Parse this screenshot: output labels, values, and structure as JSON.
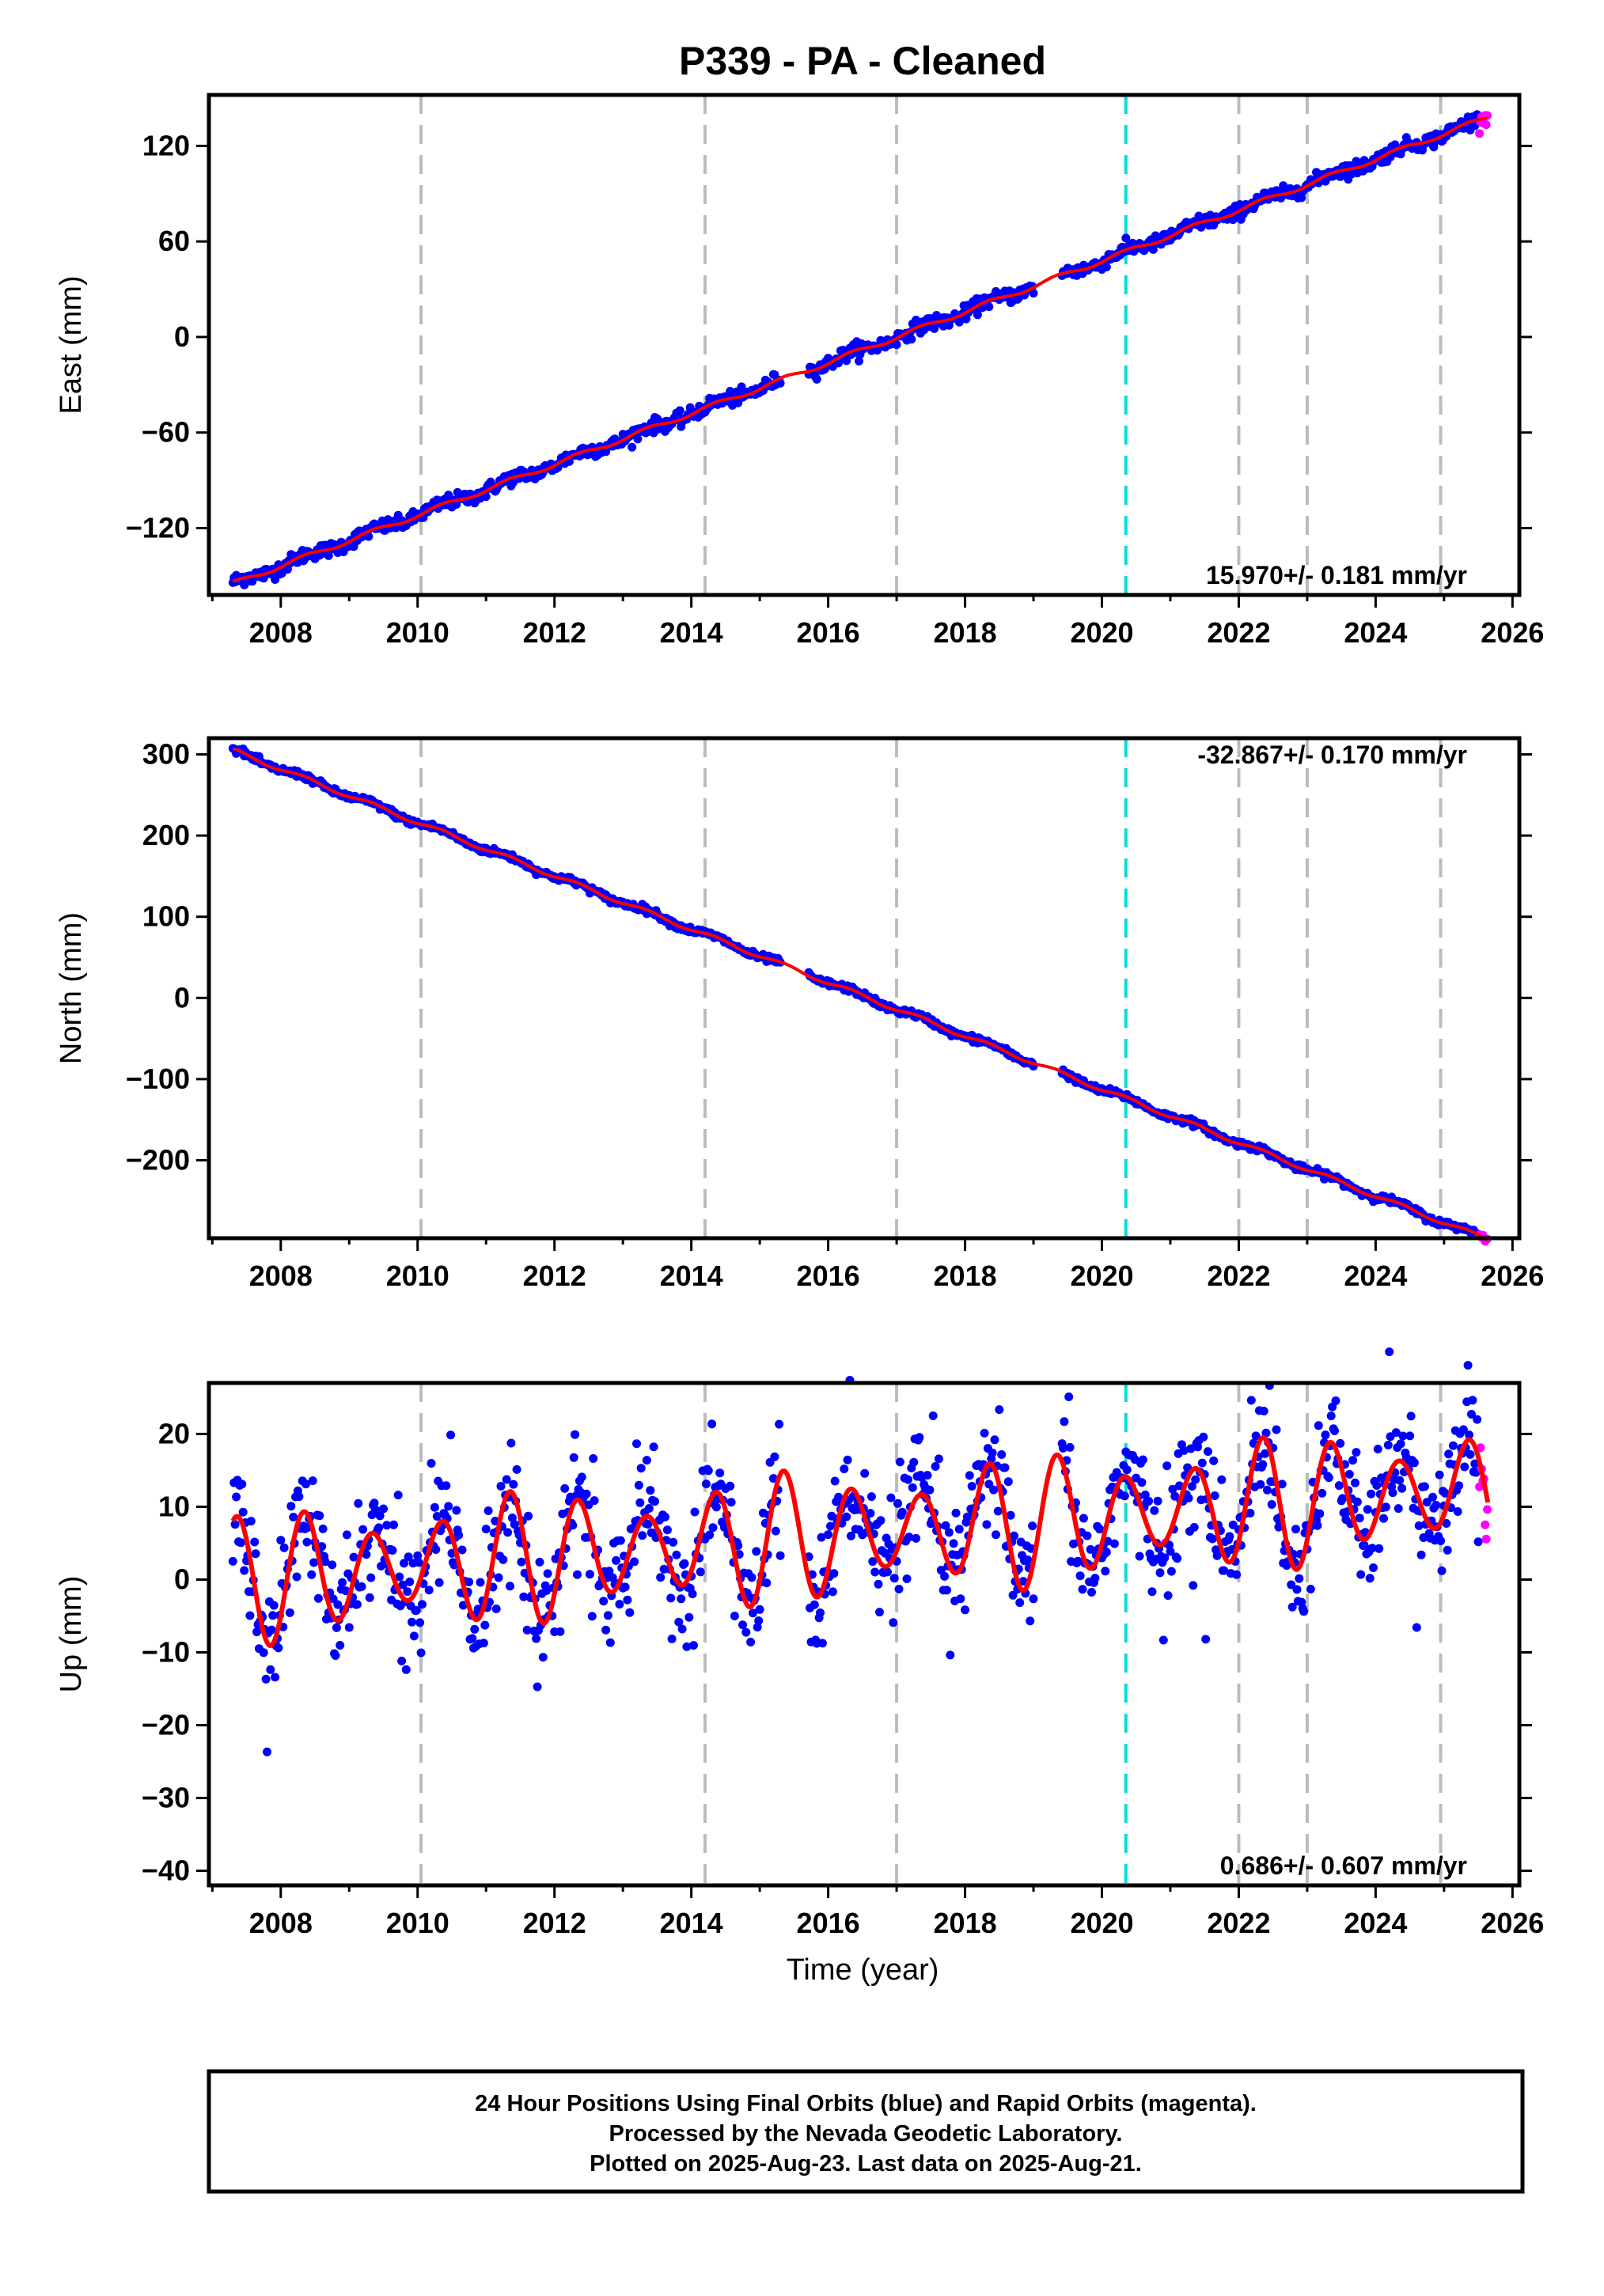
{
  "title": "P339  - PA - Cleaned",
  "xlabel": "Time (year)",
  "colors": {
    "final_orbits": "#0000ff",
    "rapid_orbits": "#ff00ff",
    "model": "#ff0000",
    "event_line": "#bbbbbb",
    "reference_line": "#00dddd"
  },
  "footer": {
    "line1": "24 Hour Positions Using Final Orbits (blue) and Rapid Orbits (magenta).",
    "line2": "Processed by the Nevada Geodetic Laboratory.",
    "line3": "Plotted on 2025-Aug-23. Last data on 2025-Aug-21."
  },
  "chart_data": [
    {
      "type": "scatter",
      "component": "east",
      "ylabel": "East (mm)",
      "xlim": [
        2006.95,
        2026.1
      ],
      "ylim": [
        -162,
        152
      ],
      "x_ticks": [
        2008,
        2010,
        2012,
        2014,
        2016,
        2018,
        2020,
        2022,
        2024,
        2026
      ],
      "y_ticks": [
        -120,
        -60,
        0,
        60,
        120
      ],
      "y_tick_labels": [
        "−120",
        "−60",
        "0",
        "60",
        "120"
      ],
      "rate_label": "15.970+/- 0.181 mm/yr",
      "rate_position": "bottom-right",
      "start_year": 2007.3,
      "end_year": 2025.64,
      "start_value": -155,
      "rate_mm_per_yr": 15.97,
      "annual_amplitude": 1.5,
      "noise": 2.2,
      "gaps": [
        [
          2015.3,
          2015.7
        ],
        [
          2019.0,
          2019.4
        ]
      ]
    },
    {
      "type": "scatter",
      "component": "north",
      "ylabel": "North (mm)",
      "xlim": [
        2006.95,
        2026.1
      ],
      "ylim": [
        -296,
        320
      ],
      "x_ticks": [
        2008,
        2010,
        2012,
        2014,
        2016,
        2018,
        2020,
        2022,
        2024,
        2026
      ],
      "y_ticks": [
        -200,
        -100,
        0,
        100,
        200,
        300
      ],
      "y_tick_labels": [
        "−200",
        "−100",
        "0",
        "100",
        "200",
        "300"
      ],
      "rate_label": "-32.867+/- 0.170 mm/yr",
      "rate_position": "top-right",
      "start_year": 2007.3,
      "end_year": 2025.64,
      "start_value": 305,
      "rate_mm_per_yr": -32.867,
      "annual_amplitude": 2.5,
      "noise": 2.0,
      "gaps": [
        [
          2015.3,
          2015.7
        ],
        [
          2019.0,
          2019.4
        ]
      ]
    },
    {
      "type": "scatter",
      "component": "up",
      "ylabel": "Up (mm)",
      "xlim": [
        2006.95,
        2026.1
      ],
      "ylim": [
        -42,
        27
      ],
      "x_ticks": [
        2008,
        2010,
        2012,
        2014,
        2016,
        2018,
        2020,
        2022,
        2024,
        2026
      ],
      "y_ticks": [
        -40,
        -30,
        -20,
        -10,
        0,
        10,
        20
      ],
      "y_tick_labels": [
        "−40",
        "−30",
        "−20",
        "−10",
        "0",
        "10",
        "20"
      ],
      "rate_label": "0.686+/- 0.607 mm/yr",
      "rate_position": "bottom-right",
      "start_year": 2007.3,
      "end_year": 2025.64,
      "start_value": 0,
      "rate_mm_per_yr": 0.686,
      "annual_amplitude": 7,
      "noise": 4.0,
      "gaps": [
        [
          2015.3,
          2015.7
        ],
        [
          2019.0,
          2019.4
        ]
      ]
    }
  ],
  "event_lines_years": [
    2010.05,
    2014.2,
    2017.0,
    2022.0,
    2023.0,
    2024.95
  ],
  "reference_line_year": 2020.35,
  "rapid_start_year": 2025.5
}
